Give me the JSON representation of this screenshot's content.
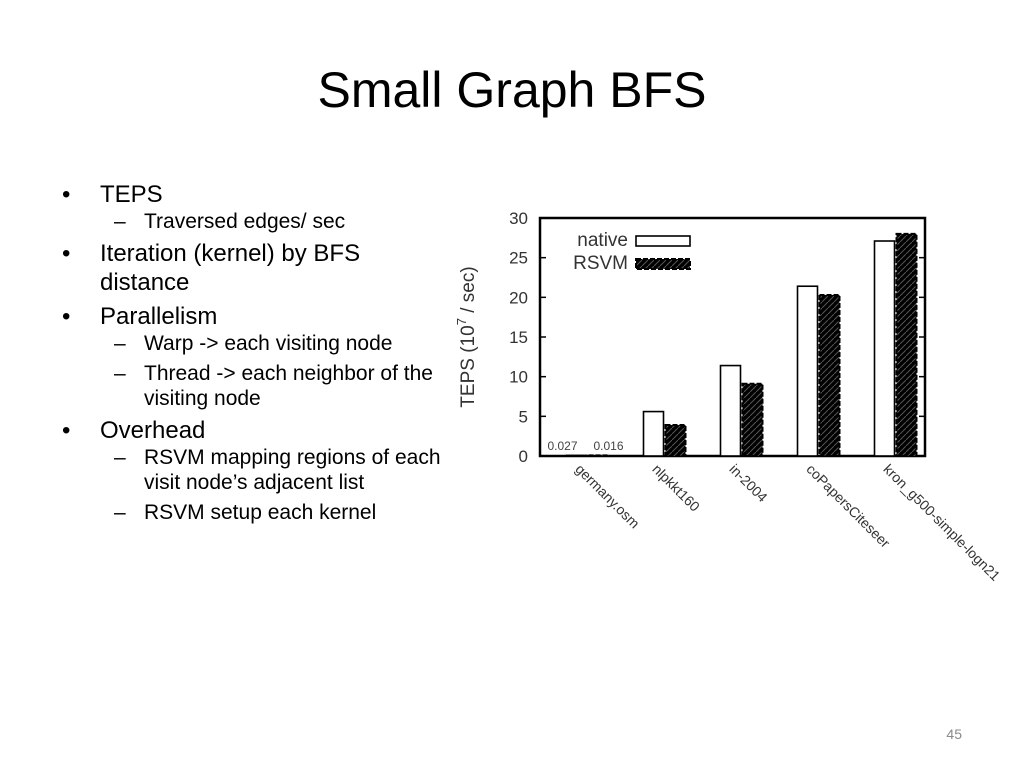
{
  "slide": {
    "title": "Small Graph BFS",
    "page_number": "45"
  },
  "bullets": {
    "bullet_glyph": "•",
    "dash_glyph": "–",
    "items": [
      {
        "text": "TEPS",
        "subitems": [
          "Traversed edges/ sec"
        ]
      },
      {
        "text": "Iteration (kernel) by BFS distance",
        "subitems": []
      },
      {
        "text": "Parallelism",
        "subitems": [
          "Warp -> each visiting node",
          "Thread -> each neighbor of the visiting node"
        ]
      },
      {
        "text": "Overhead",
        "subitems": [
          "RSVM mapping regions of each visit node’s adjacent list",
          "RSVM setup each kernel"
        ]
      }
    ]
  },
  "chart_data": {
    "type": "bar",
    "ylabel": "TEPS (10",
    "ylabel_exponent": "7",
    "ylabel_suffix": " / sec)",
    "ylim": [
      0,
      30
    ],
    "yticks": [
      "0",
      "5",
      "10",
      "15",
      "20",
      "25",
      "30"
    ],
    "categories": [
      "germany.osm",
      "nlpkkt160",
      "in-2004",
      "coPapersCiteseer",
      "kron_g500-simple-logn21"
    ],
    "series": [
      {
        "name": "native",
        "values": [
          0.027,
          5.6,
          11.4,
          21.4,
          27.1
        ]
      },
      {
        "name": "RSVM",
        "values": [
          0.016,
          3.9,
          9.1,
          20.3,
          28.0
        ]
      }
    ],
    "data_labels": [
      "0.027",
      "0.016"
    ],
    "legend_position": "top-left",
    "grid": false
  }
}
